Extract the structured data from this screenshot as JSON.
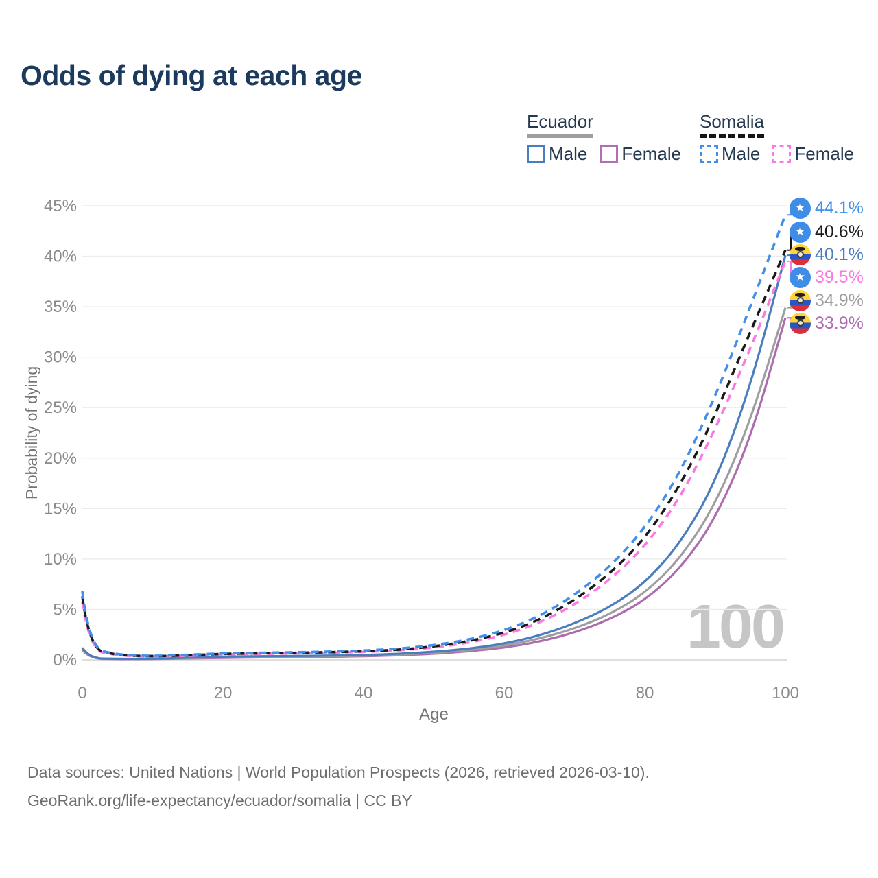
{
  "title": "Odds of dying at each age",
  "legend": {
    "groups": [
      {
        "id": "ecuador",
        "label": "Ecuador",
        "underline_color": "#9e9e9e",
        "underline_style": "solid",
        "items": [
          {
            "label": "Male",
            "color": "#4a7dbd",
            "dash": false
          },
          {
            "label": "Female",
            "color": "#b36db4",
            "dash": false
          }
        ]
      },
      {
        "id": "somalia",
        "label": "Somalia",
        "underline_color": "#161616",
        "underline_style": "dashed",
        "items": [
          {
            "label": "Male",
            "color": "#418fea",
            "dash": true
          },
          {
            "label": "Female",
            "color": "#fb79e0",
            "dash": true
          }
        ]
      }
    ]
  },
  "chart_data": {
    "type": "line",
    "title": "Odds of dying at each age",
    "xlabel": "Age",
    "ylabel": "Probability of dying",
    "xlim": [
      0,
      100
    ],
    "ylim": [
      0,
      45
    ],
    "grid": "horizontal",
    "legend_position": "top-right",
    "watermark": "100",
    "xtick_values": [
      0,
      20,
      40,
      60,
      80,
      100
    ],
    "xtick_labels": [
      "0",
      "20",
      "40",
      "60",
      "80",
      "100"
    ],
    "ytick_values": [
      0,
      5,
      10,
      15,
      20,
      25,
      30,
      35,
      40,
      45
    ],
    "ytick_labels": [
      "0%",
      "5%",
      "10%",
      "15%",
      "20%",
      "25%",
      "30%",
      "35%",
      "40%",
      "45%"
    ],
    "ages": [
      0,
      1,
      5,
      10,
      15,
      20,
      25,
      30,
      35,
      40,
      45,
      50,
      55,
      60,
      65,
      70,
      75,
      80,
      85,
      90,
      95,
      100
    ],
    "series": [
      {
        "name": "Somalia Male",
        "country": "Somalia",
        "sex": "Male",
        "color": "#418fea",
        "dash": true,
        "flag": "somalia-flag",
        "end_label": "44.1%",
        "label_color": "#418fea",
        "values": [
          6.8,
          1.2,
          0.5,
          0.38,
          0.5,
          0.65,
          0.7,
          0.75,
          0.82,
          0.92,
          1.1,
          1.45,
          2.0,
          2.9,
          4.3,
          6.4,
          9.2,
          13.0,
          18.5,
          26.0,
          35.0,
          44.1
        ]
      },
      {
        "name": "Somalia Both sexes",
        "country": "Somalia",
        "sex": "Both",
        "color": "#1a1a1a",
        "dash": true,
        "flag": "somalia-flag",
        "end_label": "40.6%",
        "label_color": "#1a1a1a",
        "values": [
          6.3,
          1.1,
          0.46,
          0.35,
          0.45,
          0.6,
          0.65,
          0.7,
          0.76,
          0.85,
          1.0,
          1.33,
          1.85,
          2.65,
          3.95,
          5.9,
          8.5,
          12.0,
          17.2,
          24.2,
          32.5,
          40.6
        ]
      },
      {
        "name": "Ecuador Male",
        "country": "Ecuador",
        "sex": "Male",
        "color": "#4a7dbd",
        "dash": false,
        "flag": "ecuador-flag",
        "end_label": "40.1%",
        "label_color": "#4a7dbd",
        "values": [
          1.2,
          0.16,
          0.1,
          0.1,
          0.22,
          0.32,
          0.36,
          0.38,
          0.42,
          0.48,
          0.6,
          0.8,
          1.1,
          1.6,
          2.4,
          3.6,
          5.2,
          7.6,
          11.5,
          17.5,
          27.0,
          40.1
        ]
      },
      {
        "name": "Somalia Female",
        "country": "Somalia",
        "sex": "Female",
        "color": "#fb79e0",
        "dash": true,
        "flag": "somalia-flag",
        "end_label": "39.5%",
        "label_color": "#fb79e0",
        "values": [
          5.8,
          1.0,
          0.43,
          0.32,
          0.4,
          0.55,
          0.6,
          0.64,
          0.7,
          0.79,
          0.93,
          1.22,
          1.7,
          2.45,
          3.65,
          5.45,
          7.9,
          11.2,
          16.0,
          22.8,
          30.8,
          39.5
        ]
      },
      {
        "name": "Ecuador Both sexes",
        "country": "Ecuador",
        "sex": "Both",
        "color": "#9e9e9e",
        "dash": false,
        "flag": "ecuador-flag",
        "end_label": "34.9%",
        "label_color": "#9e9e9e",
        "values": [
          1.1,
          0.14,
          0.09,
          0.09,
          0.18,
          0.26,
          0.3,
          0.32,
          0.36,
          0.42,
          0.52,
          0.7,
          0.97,
          1.4,
          2.1,
          3.1,
          4.5,
          6.6,
          10.0,
          15.3,
          23.6,
          34.9
        ]
      },
      {
        "name": "Ecuador Female",
        "country": "Ecuador",
        "sex": "Female",
        "color": "#ad6cb0",
        "dash": false,
        "flag": "ecuador-flag",
        "end_label": "33.9%",
        "label_color": "#ad6cb0",
        "values": [
          1.0,
          0.12,
          0.08,
          0.08,
          0.14,
          0.2,
          0.24,
          0.27,
          0.3,
          0.36,
          0.45,
          0.6,
          0.85,
          1.2,
          1.8,
          2.7,
          4.0,
          5.9,
          9.0,
          13.9,
          21.8,
          33.9
        ]
      }
    ]
  },
  "footer": {
    "line1": "Data sources: United Nations | World Population Prospects (2026, retrieved 2026-03-10).",
    "line2": "GeoRank.org/life-expectancy/ecuador/somalia | CC BY"
  }
}
